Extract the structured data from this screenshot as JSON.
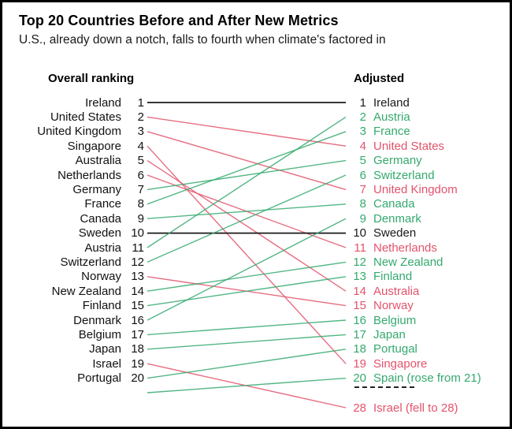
{
  "colors": {
    "up": "#35a96e",
    "down": "#e3536b",
    "same": "#1a1a1a"
  },
  "chart_data": {
    "type": "line",
    "subtype": "slope_rank_chart",
    "title": "Top 20 Countries Before and After New Metrics",
    "subtitle": "U.S., already down a notch, falls to fourth when climate's factored in",
    "left_column_header": "Overall ranking",
    "right_column_header": "Adjusted",
    "rank_range_shown": [
      1,
      20
    ],
    "legend_semantics": {
      "green": "rose in ranking",
      "red": "fell in ranking",
      "black": "unchanged"
    },
    "series": [
      {
        "name": "Ireland",
        "before": 1,
        "after": 1,
        "direction": "same"
      },
      {
        "name": "United States",
        "before": 2,
        "after": 4,
        "direction": "down"
      },
      {
        "name": "United Kingdom",
        "before": 3,
        "after": 7,
        "direction": "down"
      },
      {
        "name": "Singapore",
        "before": 4,
        "after": 19,
        "direction": "down"
      },
      {
        "name": "Australia",
        "before": 5,
        "after": 14,
        "direction": "down"
      },
      {
        "name": "Netherlands",
        "before": 6,
        "after": 11,
        "direction": "down"
      },
      {
        "name": "Germany",
        "before": 7,
        "after": 5,
        "direction": "up"
      },
      {
        "name": "France",
        "before": 8,
        "after": 3,
        "direction": "up"
      },
      {
        "name": "Canada",
        "before": 9,
        "after": 8,
        "direction": "up"
      },
      {
        "name": "Sweden",
        "before": 10,
        "after": 10,
        "direction": "same"
      },
      {
        "name": "Austria",
        "before": 11,
        "after": 2,
        "direction": "up"
      },
      {
        "name": "Switzerland",
        "before": 12,
        "after": 6,
        "direction": "up"
      },
      {
        "name": "Norway",
        "before": 13,
        "after": 15,
        "direction": "down"
      },
      {
        "name": "New Zealand",
        "before": 14,
        "after": 12,
        "direction": "up"
      },
      {
        "name": "Finland",
        "before": 15,
        "after": 13,
        "direction": "up"
      },
      {
        "name": "Denmark",
        "before": 16,
        "after": 9,
        "direction": "up"
      },
      {
        "name": "Belgium",
        "before": 17,
        "after": 16,
        "direction": "up"
      },
      {
        "name": "Japan",
        "before": 18,
        "after": 17,
        "direction": "up"
      },
      {
        "name": "Israel",
        "before": 19,
        "after": 28,
        "direction": "down",
        "right_label": "Israel (fell to 28)"
      },
      {
        "name": "Portugal",
        "before": 20,
        "after": 18,
        "direction": "up"
      },
      {
        "name": "Spain",
        "before": 21,
        "after": 20,
        "direction": "up",
        "right_label": "Spain (rose from 21)"
      }
    ]
  }
}
